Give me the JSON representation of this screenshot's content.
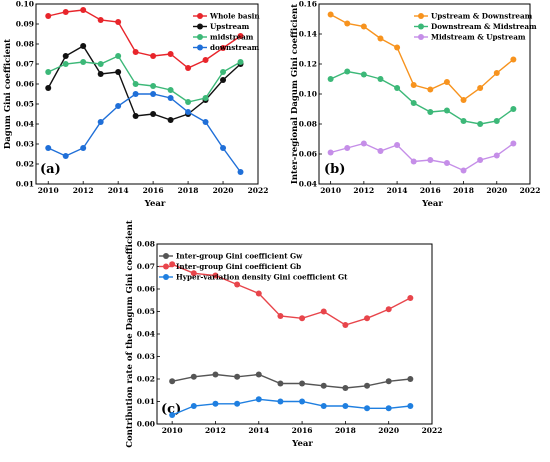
{
  "chart_data": [
    {
      "type": "line",
      "panel_label": "(a)",
      "xlabel": "Year",
      "ylabel": "Dagum Gini coefficient",
      "x": [
        2010,
        2011,
        2012,
        2013,
        2014,
        2015,
        2016,
        2017,
        2018,
        2019,
        2020,
        2021
      ],
      "xlim": [
        2009.3,
        2022
      ],
      "ylim": [
        0.01,
        0.1
      ],
      "xticks": [
        2010,
        2012,
        2014,
        2016,
        2018,
        2020,
        2022
      ],
      "xtick_labels": [
        "2010",
        "2012",
        "2014",
        "2016",
        "2018",
        "2020",
        "2022"
      ],
      "yticks": [
        0.01,
        0.02,
        0.03,
        0.04,
        0.05,
        0.06,
        0.07,
        0.08,
        0.09,
        0.1
      ],
      "ytick_labels": [
        "0.01",
        "0.02",
        "0.03",
        "0.04",
        "0.05",
        "0.06",
        "0.07",
        "0.08",
        "0.09",
        "0.10"
      ],
      "legend_position": "top-right",
      "grid": false,
      "series": [
        {
          "name": "Whole basin",
          "color": "#e8252b",
          "values": [
            0.094,
            0.096,
            0.097,
            0.092,
            0.091,
            0.076,
            0.074,
            0.075,
            0.068,
            0.072,
            0.078,
            0.084
          ]
        },
        {
          "name": "Upstream",
          "color": "#111111",
          "values": [
            0.058,
            0.074,
            0.079,
            0.065,
            0.066,
            0.044,
            0.045,
            0.042,
            0.045,
            0.052,
            0.062,
            0.07
          ]
        },
        {
          "name": "midstream",
          "color": "#3cb878",
          "values": [
            0.066,
            0.07,
            0.071,
            0.07,
            0.074,
            0.06,
            0.059,
            0.057,
            0.051,
            0.053,
            0.066,
            0.071
          ]
        },
        {
          "name": "downstream",
          "color": "#1f6fd8",
          "values": [
            0.028,
            0.024,
            0.028,
            0.041,
            0.049,
            0.055,
            0.055,
            0.053,
            0.046,
            0.041,
            0.028,
            0.016
          ]
        }
      ]
    },
    {
      "type": "line",
      "panel_label": "(b)",
      "xlabel": "Year",
      "ylabel": "Inter-regional Dagum Gini coefficient",
      "x": [
        2010,
        2011,
        2012,
        2013,
        2014,
        2015,
        2016,
        2017,
        2018,
        2019,
        2020,
        2021
      ],
      "xlim": [
        2009.3,
        2022
      ],
      "ylim": [
        0.04,
        0.16
      ],
      "xticks": [
        2010,
        2012,
        2014,
        2016,
        2018,
        2020,
        2022
      ],
      "xtick_labels": [
        "2010",
        "2012",
        "2014",
        "2016",
        "2018",
        "2020",
        "2022"
      ],
      "yticks": [
        0.04,
        0.06,
        0.08,
        0.1,
        0.12,
        0.14,
        0.16
      ],
      "ytick_labels": [
        "0.04",
        "0.06",
        "0.08",
        "0.10",
        "0.12",
        "0.14",
        "0.16"
      ],
      "legend_position": "top-right",
      "grid": false,
      "series": [
        {
          "name": "Upstream & Downstream",
          "color": "#f7931e",
          "values": [
            0.153,
            0.147,
            0.145,
            0.137,
            0.131,
            0.106,
            0.103,
            0.108,
            0.096,
            0.104,
            0.114,
            0.123
          ]
        },
        {
          "name": "Downstream & Midstream",
          "color": "#3cb878",
          "values": [
            0.11,
            0.115,
            0.113,
            0.11,
            0.104,
            0.094,
            0.088,
            0.089,
            0.082,
            0.08,
            0.082,
            0.09
          ]
        },
        {
          "name": "Midstream & Upstream",
          "color": "#c58ee8",
          "values": [
            0.061,
            0.064,
            0.067,
            0.062,
            0.066,
            0.055,
            0.056,
            0.054,
            0.049,
            0.056,
            0.059,
            0.067
          ]
        }
      ]
    },
    {
      "type": "line",
      "panel_label": "(c)",
      "xlabel": "Year",
      "ylabel": "Contribution rate of the Dagum Gini coefficient",
      "x": [
        2010,
        2011,
        2012,
        2013,
        2014,
        2015,
        2016,
        2017,
        2018,
        2019,
        2020,
        2021
      ],
      "xlim": [
        2009.3,
        2022
      ],
      "ylim": [
        0.0,
        0.08
      ],
      "xticks": [
        2010,
        2012,
        2014,
        2016,
        2018,
        2020,
        2022
      ],
      "xtick_labels": [
        "2010",
        "2012",
        "2014",
        "2016",
        "2018",
        "2020",
        "2022"
      ],
      "yticks": [
        0.0,
        0.01,
        0.02,
        0.03,
        0.04,
        0.05,
        0.06,
        0.07,
        0.08
      ],
      "ytick_labels": [
        "0.00",
        "0.01",
        "0.02",
        "0.03",
        "0.04",
        "0.05",
        "0.06",
        "0.07",
        "0.08"
      ],
      "legend_position": "top-left",
      "grid": false,
      "series": [
        {
          "name": "Inter-group Gini coefficient Gw",
          "color": "#555555",
          "values": [
            0.019,
            0.021,
            0.022,
            0.021,
            0.022,
            0.018,
            0.018,
            0.017,
            0.016,
            0.017,
            0.019,
            0.02
          ]
        },
        {
          "name": "Inter-group Gini coefficient Gb",
          "color": "#e8454b",
          "values": [
            0.071,
            0.067,
            0.066,
            0.062,
            0.058,
            0.048,
            0.047,
            0.05,
            0.044,
            0.047,
            0.051,
            0.056
          ]
        },
        {
          "name": "Hyper-variation density Gini coefficient Gt",
          "color": "#1f7fe0",
          "values": [
            0.004,
            0.008,
            0.009,
            0.009,
            0.011,
            0.01,
            0.01,
            0.008,
            0.008,
            0.007,
            0.007,
            0.008
          ]
        }
      ]
    }
  ]
}
